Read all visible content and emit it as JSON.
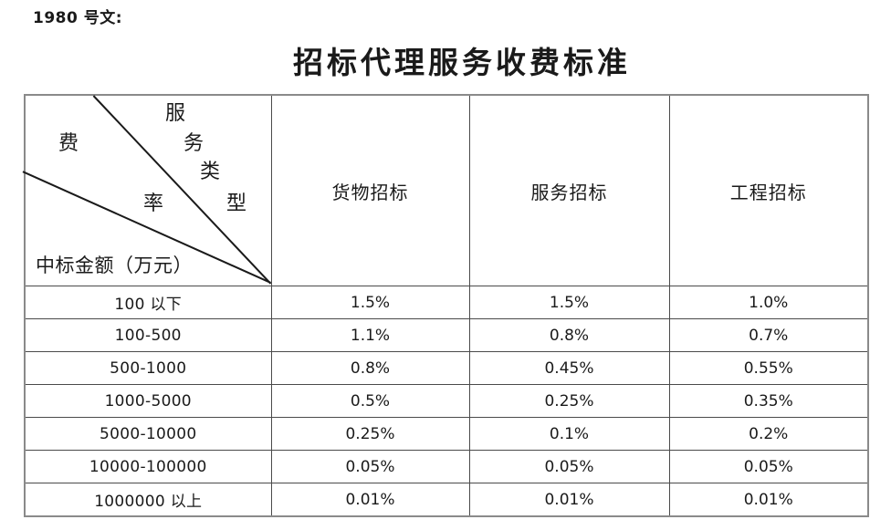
{
  "doc": {
    "reference": "1980 号文:",
    "title": "招标代理服务收费标准"
  },
  "table": {
    "corner": {
      "col_axis_label": "服务类型",
      "col_axis_chars": [
        "服",
        "务",
        "类",
        "型"
      ],
      "row_axis_rate_label": "费率",
      "rate_chars": [
        "费",
        "率"
      ],
      "amount_axis_label": "中标金额（万元）"
    },
    "columns": [
      "货物招标",
      "服务招标",
      "工程招标"
    ],
    "rows": [
      [
        "100 以下",
        "1.5%",
        "1.5%",
        "1.0%"
      ],
      [
        "100-500",
        "1.1%",
        "0.8%",
        "0.7%"
      ],
      [
        "500-1000",
        "0.8%",
        "0.45%",
        "0.55%"
      ],
      [
        "1000-5000",
        "0.5%",
        "0.25%",
        "0.35%"
      ],
      [
        "5000-10000",
        "0.25%",
        "0.1%",
        "0.2%"
      ],
      [
        "10000-100000",
        "0.05%",
        "0.05%",
        "0.05%"
      ],
      [
        "1000000 以上",
        "0.01%",
        "0.01%",
        "0.01%"
      ]
    ]
  },
  "colors": {
    "text": "#1a1a1a",
    "border_inner": "#4a4a4a",
    "border_outer": "#8a8a8a",
    "background": "#ffffff"
  }
}
